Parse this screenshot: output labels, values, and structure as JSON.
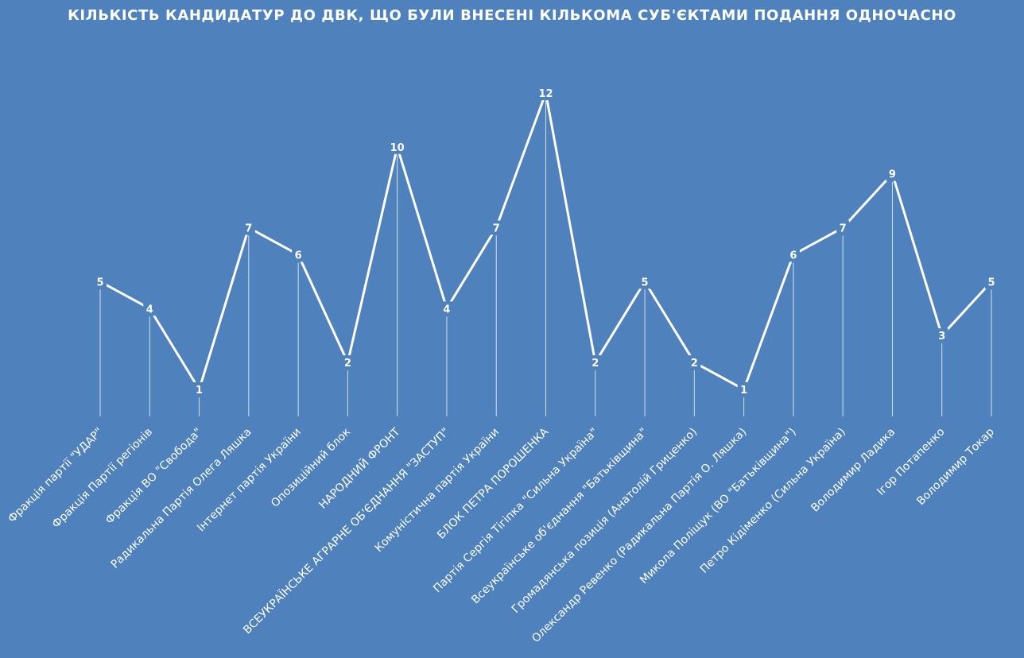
{
  "chart_data": {
    "type": "line",
    "title": "КІЛЬКІСТЬ КАНДИДАТУР ДО ДВК, ЩО БУЛИ ВНЕСЕНІ КІЛЬКОМА СУБ'ЄКТАМИ ПОДАННЯ ОДНОЧАСНО",
    "categories": [
      "Фракція партії \"УДАР\"",
      "Фракція Партії регіонів",
      "Фракція ВО \"Свобода\"",
      "Радикальна Партія Олега Ляшка",
      "Інтернет партія України",
      "Опозиційний блок",
      "НАРОДНИЙ ФРОНТ",
      "ВСЕУКРАЇНСЬКЕ АГРАРНЕ ОБ'ЄДНАННЯ \"ЗАСТУП\"",
      "Комуністична партія України",
      "БЛОК ПЕТРА ПОРОШЕНКА",
      "Партія Сергія Тігіпка \"Сильна Україна\"",
      "Всеукраїнське об'єднання \"Батьківщина\"",
      "Громадянська позиція (Анатолій Гриценко)",
      "Олександр Ревенко (Радикальна Партія О. Ляшка)",
      "Микола Поліщук (ВО \"Батьківщина\")",
      "Петро Кідіменко (Сильна Україна)",
      "Володимир Ладика",
      "Ігор Потапенко",
      "Володимир Токар"
    ],
    "values": [
      5,
      4,
      1,
      7,
      6,
      2,
      10,
      4,
      7,
      12,
      2,
      5,
      2,
      1,
      6,
      7,
      9,
      3,
      5
    ],
    "ylim": [
      0,
      12
    ],
    "grid": false,
    "legend": "none",
    "drop_lines": true,
    "data_labels": true,
    "colors": {
      "background": "#4f81bd",
      "line": "#ffffff",
      "text": "#ffffff"
    }
  }
}
